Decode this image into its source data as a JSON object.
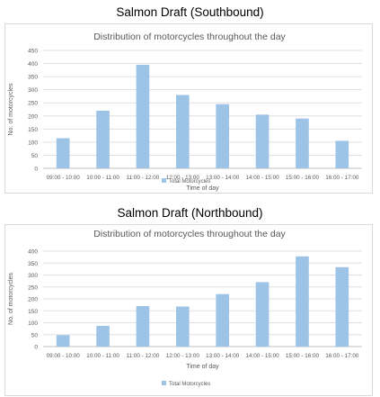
{
  "headings": [
    "Salmon Draft (Southbound)",
    "Salmon Draft (Northbound)"
  ],
  "chart_data": [
    {
      "type": "bar",
      "title": "Distribution of motorcycles throughout the day",
      "xlabel": "Time of day",
      "ylabel": "No. of motorcycles",
      "ylim": [
        0,
        450
      ],
      "yticks": [
        0,
        50,
        100,
        150,
        200,
        250,
        300,
        350,
        400,
        450
      ],
      "grid": true,
      "legend_position": "bottom",
      "categories": [
        "09:00 - 10:00",
        "10:00 - 11:00",
        "11:00 - 12:00",
        "12:00 - 13:00",
        "13:00 - 14:00",
        "14:00 - 15:00",
        "15:00 - 16:00",
        "16:00 - 17:00"
      ],
      "series": [
        {
          "name": "Total Motorcycles",
          "color": "#9DC3E6",
          "values": [
            115,
            220,
            395,
            280,
            245,
            205,
            190,
            105
          ]
        }
      ]
    },
    {
      "type": "bar",
      "title": "Distribution of motorcycles throughout the day",
      "xlabel": "Time of day",
      "ylabel": "No. of motorcycles",
      "ylim": [
        0,
        400
      ],
      "yticks": [
        0,
        50,
        100,
        150,
        200,
        250,
        300,
        350,
        400
      ],
      "grid": true,
      "legend_position": "bottom",
      "categories": [
        "09:00 - 10:00",
        "10:00 - 11:00",
        "11:00 - 12:00",
        "12:00 - 13:00",
        "13:00 - 14:00",
        "14:00 - 15:00",
        "15:00 - 16:00",
        "16:00 - 17:00"
      ],
      "series": [
        {
          "name": "Total Motorcycles",
          "color": "#9DC3E6",
          "values": [
            48,
            87,
            170,
            168,
            220,
            270,
            378,
            333
          ]
        }
      ]
    }
  ]
}
